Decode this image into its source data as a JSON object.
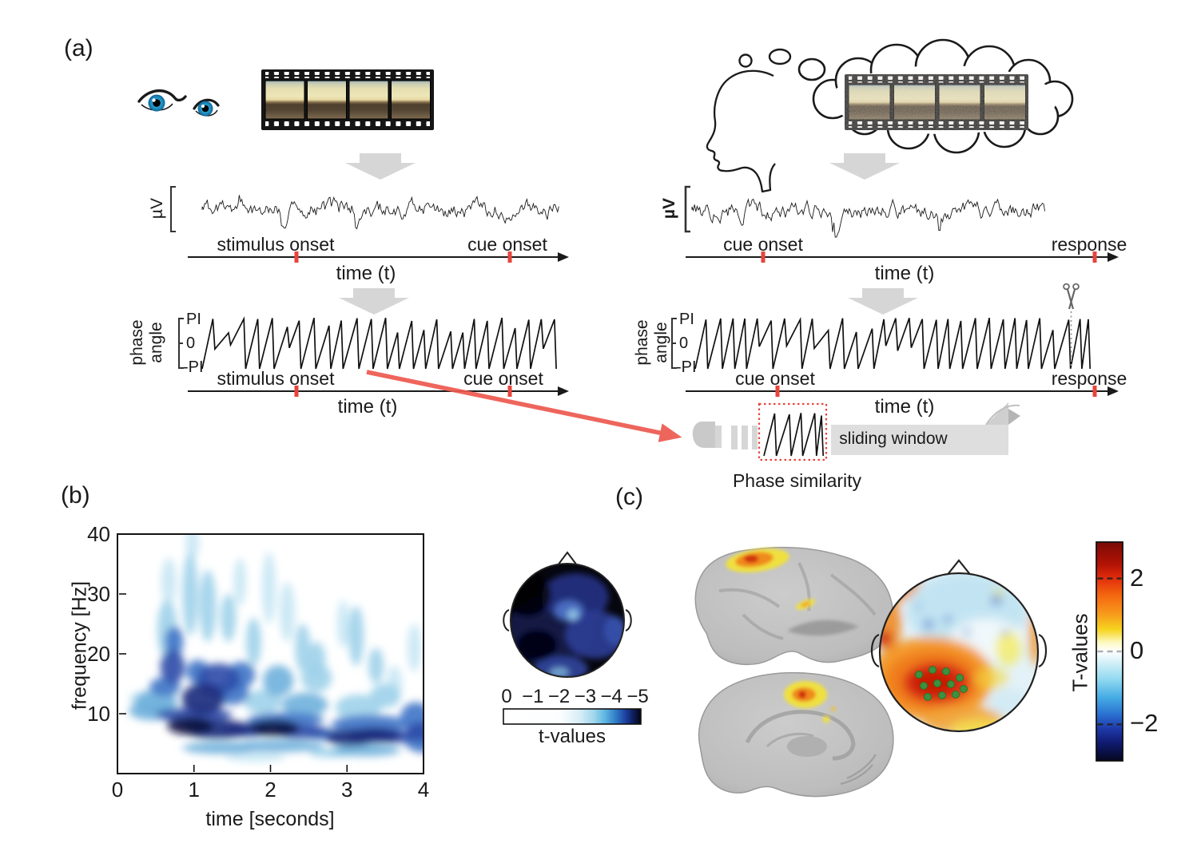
{
  "colors": {
    "accent_red": "#e8443c",
    "arrow_gray": "#d6d6d6",
    "ribbon_gray": "#dedede",
    "electrode_dot_green": "#3c9140",
    "spectrogram_dark": "#0c1340",
    "spectrogram_light": "#d8eef7"
  },
  "panel_a": {
    "label": "(a)",
    "left": {
      "eeg_unit": "µV",
      "timeline1": {
        "event1": "stimulus onset",
        "event2": "cue onset",
        "xlabel": "time (t)"
      },
      "phase_label_word1": "phase",
      "phase_label_word2": "angle",
      "phase_ticks": {
        "top": "PI",
        "mid": "0",
        "bottom": "-PI"
      },
      "timeline2": {
        "event1": "stimulus onset",
        "event2": "cue onset",
        "xlabel": "time (t)"
      }
    },
    "right": {
      "eeg_unit": "µV",
      "timeline1": {
        "event1": "cue onset",
        "event2": "response",
        "xlabel": "time (t)"
      },
      "phase_label_word1": "phase",
      "phase_label_word2": "angle",
      "phase_ticks": {
        "top": "PI",
        "mid": "0",
        "bottom": "-PI"
      },
      "timeline2": {
        "event1": "cue onset",
        "event2": "response",
        "xlabel": "time (t)"
      },
      "sliding_window_label": "sliding window",
      "phase_similarity_label": "Phase similarity"
    }
  },
  "panel_b": {
    "label": "(b)"
  },
  "panel_c": {
    "label": "(c)",
    "colorbar_label": "T-values",
    "colorbar_ticks": [
      2,
      0,
      -2
    ],
    "electrode_marker_count": 11,
    "brain_views": [
      "lateral",
      "medial"
    ]
  },
  "chart_data": [
    {
      "id": "time_frequency_tvalues",
      "type": "heatmap",
      "title": "",
      "xlabel": "time [seconds]",
      "ylabel": "frequency [Hz]",
      "xlim": [
        0,
        4
      ],
      "ylim": [
        0,
        40
      ],
      "xticks": [
        0,
        1,
        2,
        3,
        4
      ],
      "yticks": [
        10,
        20,
        30,
        40
      ],
      "grid": false,
      "colorbar": {
        "label": "t-values",
        "ticks": [
          0,
          -1,
          -2,
          -3,
          -4,
          -5
        ],
        "orientation": "horizontal"
      },
      "units": {
        "x": "seconds",
        "y": "Hz",
        "value": "negative t-value magnitude (0 to 5)"
      },
      "blobs_t_f_dt_df_mag": [
        [
          0.45,
          10.5,
          0.3,
          1.6,
          1.6
        ],
        [
          0.35,
          12.5,
          0.2,
          1.2,
          1.0
        ],
        [
          0.5,
          12.0,
          0.28,
          2.0,
          2.0
        ],
        [
          0.62,
          14.5,
          0.2,
          1.6,
          2.4
        ],
        [
          0.65,
          24,
          0.13,
          5,
          1.5
        ],
        [
          0.67,
          32,
          0.1,
          4,
          1.0
        ],
        [
          0.72,
          17.8,
          0.16,
          2.8,
          3.4
        ],
        [
          0.74,
          22.0,
          0.12,
          2.6,
          2.4
        ],
        [
          0.95,
          30,
          0.1,
          7,
          1.3
        ],
        [
          0.98,
          38.5,
          0.09,
          2.5,
          0.9
        ],
        [
          0.95,
          8.0,
          0.3,
          1.5,
          4.8
        ],
        [
          1.0,
          9.8,
          0.5,
          1.2,
          3.0
        ],
        [
          1.05,
          17.0,
          0.15,
          2.0,
          2.8
        ],
        [
          1.12,
          12.5,
          0.28,
          2.6,
          4.0
        ],
        [
          1.18,
          28,
          0.11,
          6,
          1.2
        ],
        [
          1.3,
          7.4,
          0.45,
          1.6,
          4.0
        ],
        [
          1.32,
          15.8,
          0.28,
          2.6,
          3.6
        ],
        [
          1.35,
          4.3,
          0.5,
          1.0,
          1.8
        ],
        [
          1.45,
          26,
          0.1,
          4,
          1.1
        ],
        [
          1.5,
          13.5,
          0.22,
          2.0,
          2.6
        ],
        [
          1.6,
          32,
          0.08,
          4,
          0.8
        ],
        [
          1.62,
          16.5,
          0.18,
          2.2,
          2.2
        ],
        [
          1.7,
          7.3,
          0.3,
          1.2,
          3.4
        ],
        [
          1.78,
          22,
          0.1,
          4,
          1.1
        ],
        [
          1.8,
          2.8,
          0.4,
          0.8,
          1.0
        ],
        [
          1.9,
          12.0,
          0.25,
          2.0,
          1.4
        ],
        [
          1.98,
          31,
          0.09,
          6,
          1.0
        ],
        [
          2.05,
          7.6,
          0.33,
          1.4,
          4.6
        ],
        [
          2.1,
          4.6,
          0.6,
          1.0,
          1.6
        ],
        [
          2.1,
          15.5,
          0.2,
          2.6,
          1.6
        ],
        [
          2.2,
          9.0,
          0.5,
          1.2,
          2.4
        ],
        [
          2.22,
          27,
          0.1,
          5,
          1.0
        ],
        [
          2.4,
          7.0,
          0.35,
          1.2,
          3.6
        ],
        [
          2.42,
          21,
          0.1,
          4,
          1.1
        ],
        [
          2.45,
          11.5,
          0.3,
          2.0,
          1.6
        ],
        [
          2.6,
          16.0,
          0.2,
          2.4,
          1.4
        ],
        [
          2.6,
          19,
          0.12,
          3,
          1.2
        ],
        [
          2.7,
          6.6,
          0.25,
          1.0,
          2.8
        ],
        [
          2.8,
          3.5,
          0.3,
          0.8,
          1.2
        ],
        [
          2.95,
          25,
          0.08,
          4,
          0.8
        ],
        [
          3.05,
          6.0,
          0.33,
          1.4,
          3.8
        ],
        [
          3.12,
          23,
          0.1,
          5,
          1.2
        ],
        [
          3.15,
          11.0,
          0.3,
          2.2,
          1.5
        ],
        [
          3.25,
          3.9,
          0.45,
          1.0,
          2.0
        ],
        [
          3.3,
          8.3,
          0.5,
          1.5,
          2.2
        ],
        [
          3.35,
          6.4,
          0.35,
          1.3,
          4.2
        ],
        [
          3.38,
          18,
          0.1,
          3,
          1.1
        ],
        [
          3.5,
          13.0,
          0.2,
          2.0,
          1.2
        ],
        [
          3.6,
          6.2,
          0.3,
          1.1,
          3.4
        ],
        [
          3.62,
          15,
          0.1,
          3,
          1.0
        ],
        [
          3.88,
          21,
          0.09,
          4,
          0.9
        ],
        [
          3.9,
          9.5,
          0.2,
          2.4,
          2.2
        ],
        [
          3.97,
          7.0,
          0.2,
          1.6,
          3.2
        ],
        [
          4.0,
          5.5,
          0.25,
          2.0,
          2.2
        ]
      ]
    },
    {
      "id": "scalp_topography_b",
      "type": "heatmap",
      "description": "Scalp topography of strongly negative t-values; all electrodes dark blue to black, shares horizontal t-values colorbar from 0 to -5"
    },
    {
      "id": "scalp_topography_c",
      "type": "heatmap",
      "description": "Scalp topography of T-values; positive red-orange left-central cluster marked with green electrode dots, mild negative blue right-frontal region",
      "colorbar": {
        "label": "T-values",
        "ticks": [
          2,
          0,
          -2
        ],
        "range": [
          -3,
          3
        ],
        "orientation": "vertical"
      }
    }
  ]
}
